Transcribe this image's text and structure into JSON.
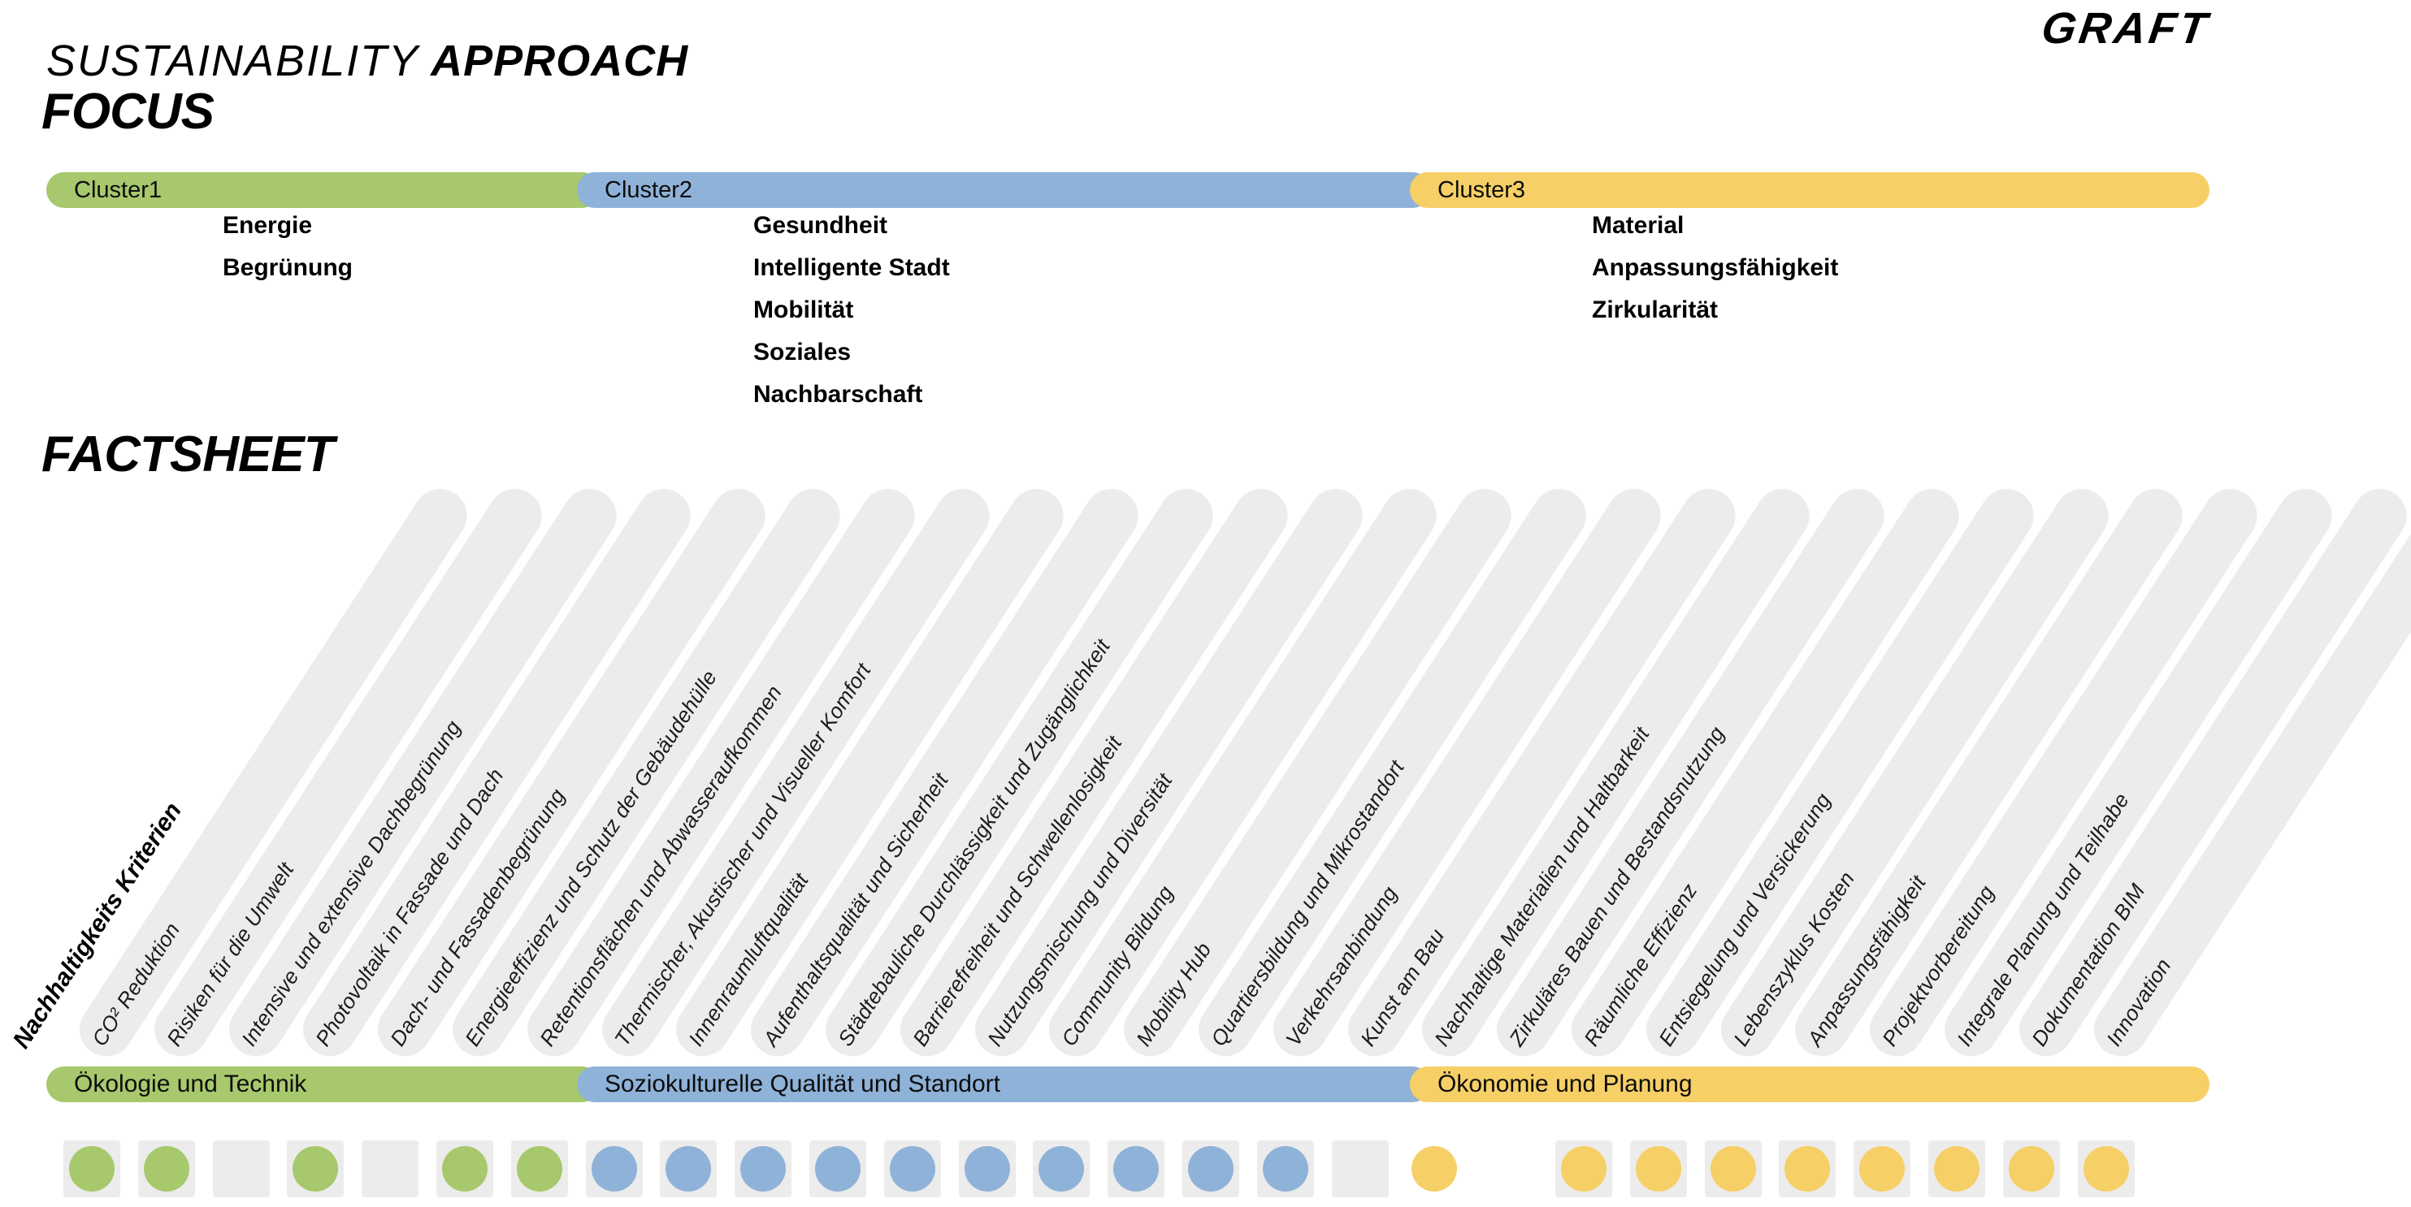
{
  "header": {
    "title_light": "SUSTAINABILITY",
    "title_bold": "APPROACH",
    "logo": "GRAFT"
  },
  "colors": {
    "green": "#a7c86c",
    "blue": "#8fb2d8",
    "yellow": "#f6cf66",
    "pill": "#ececec",
    "square": "#ececec"
  },
  "focus": {
    "heading": "FOCUS",
    "clusters": [
      {
        "label": "Cluster1",
        "color_key": "green",
        "items": [
          "Energie",
          "Begrünung"
        ]
      },
      {
        "label": "Cluster2",
        "color_key": "blue",
        "items": [
          "Gesundheit",
          "Intelligente Stadt",
          "Mobilität",
          "Soziales",
          "Nachbarschaft"
        ]
      },
      {
        "label": "Cluster3",
        "color_key": "yellow",
        "items": [
          "Material",
          "Anpassungsfähigkeit",
          "Zirkularität"
        ]
      }
    ]
  },
  "factsheet": {
    "heading": "FACTSHEET",
    "axis_label": "Nachhaltigkeits Kriterien",
    "categories": [
      {
        "label": "Ökologie und Technik",
        "color_key": "green"
      },
      {
        "label": "Soziokulturelle Qualität und Standort",
        "color_key": "blue"
      },
      {
        "label": "Ökonomie und Planung",
        "color_key": "yellow"
      }
    ],
    "criteria": [
      {
        "label": "CO² Reduktion",
        "square": true,
        "dot": "green"
      },
      {
        "label": "Risiken für die Umwelt",
        "square": true,
        "dot": "green"
      },
      {
        "label": "Intensive und extensive Dachbegrünung",
        "square": true,
        "dot": null
      },
      {
        "label": "Photovoltaik in Fassade und Dach",
        "square": true,
        "dot": "green"
      },
      {
        "label": "Dach- und Fassadenbegrünung",
        "square": true,
        "dot": null
      },
      {
        "label": "Energieeffizienz und Schutz der Gebäudehülle",
        "square": true,
        "dot": "green"
      },
      {
        "label": "Retentionsflächen und Abwasseraufkommen",
        "square": true,
        "dot": "green"
      },
      {
        "label": "Thermischer, Akustischer und Visueller Komfort",
        "square": true,
        "dot": "blue"
      },
      {
        "label": "Innenraumluftqualität",
        "square": true,
        "dot": "blue"
      },
      {
        "label": "Aufenthaltsqualität und Sicherheit",
        "square": true,
        "dot": "blue"
      },
      {
        "label": "Städtebauliche Durchlässigkeit und Zugänglichkeit",
        "square": true,
        "dot": "blue"
      },
      {
        "label": "Barrierefreiheit und Schwellenlosigkeit",
        "square": true,
        "dot": "blue"
      },
      {
        "label": "Nutzungsmischung und Diversität",
        "square": true,
        "dot": "blue"
      },
      {
        "label": "Community Bildung",
        "square": true,
        "dot": "blue"
      },
      {
        "label": "Mobility Hub",
        "square": true,
        "dot": "blue"
      },
      {
        "label": "Quartiersbildung und Mikrostandort",
        "square": true,
        "dot": "blue"
      },
      {
        "label": "Verkehrsanbindung",
        "square": true,
        "dot": "blue"
      },
      {
        "label": "Kunst am Bau",
        "square": true,
        "dot": null
      },
      {
        "label": "Nachhaltige Materialien und Haltbarkeit",
        "square": false,
        "dot": "yellow"
      },
      {
        "label": "Zirkuläres Bauen und Bestandsnutzung",
        "square": false,
        "dot": null
      },
      {
        "label": "Räumliche Effizienz",
        "square": true,
        "dot": "yellow"
      },
      {
        "label": "Entsiegelung und Versickerung",
        "square": true,
        "dot": "yellow"
      },
      {
        "label": "Lebenszyklus Kosten",
        "square": true,
        "dot": "yellow"
      },
      {
        "label": "Anpassungsfähigkeit",
        "square": true,
        "dot": "yellow"
      },
      {
        "label": "Projektvorbereitung",
        "square": true,
        "dot": "yellow"
      },
      {
        "label": "Integrale Planung und Teilhabe",
        "square": true,
        "dot": "yellow"
      },
      {
        "label": "Dokumentation BIM",
        "square": true,
        "dot": "yellow"
      },
      {
        "label": "Innovation",
        "square": true,
        "dot": "yellow"
      }
    ]
  }
}
